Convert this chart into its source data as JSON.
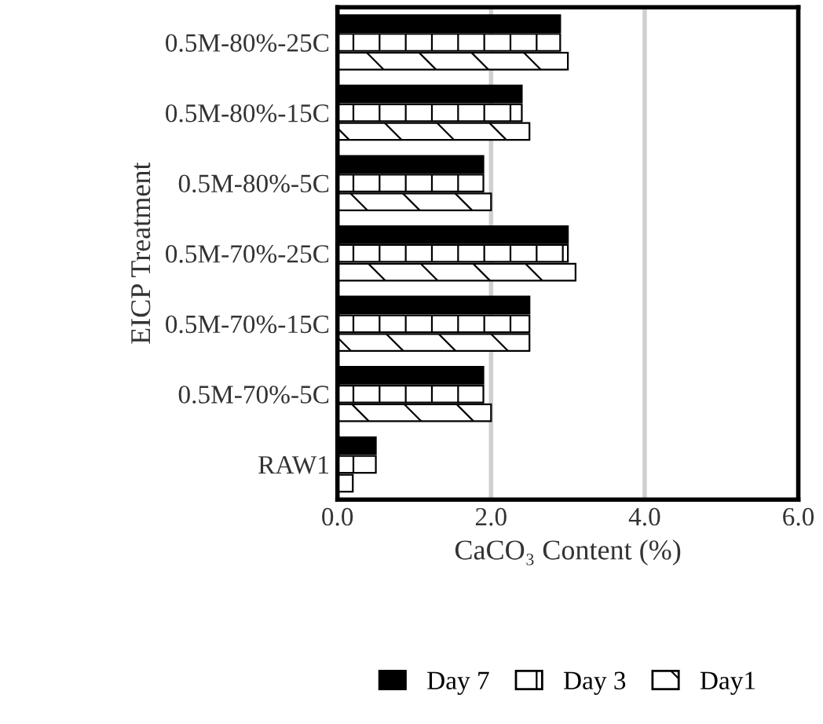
{
  "chart_data": {
    "type": "bar",
    "orientation": "horizontal",
    "xlabel": "CaCO₃ Content (%)",
    "ylabel": "EICP Treatment",
    "categories": [
      "0.5M-80%-25C",
      "0.5M-80%-15C",
      "0.5M-80%-5C",
      "0.5M-70%-25C",
      "0.5M-70%-15C",
      "0.5M-70%-5C",
      "RAW1"
    ],
    "series": [
      {
        "name": "Day 7",
        "color": "#000000",
        "values": [
          2.9,
          2.4,
          1.9,
          3.0,
          2.5,
          1.9,
          0.5
        ]
      },
      {
        "name": "Day 3",
        "color": "#ffffff",
        "values": [
          2.9,
          2.4,
          1.9,
          3.0,
          2.5,
          1.9,
          0.5
        ]
      },
      {
        "name": "Day1",
        "color": "#ffffff",
        "values": [
          3.0,
          2.5,
          2.0,
          3.1,
          2.5,
          2.0,
          0.2
        ]
      }
    ],
    "xlim": [
      0,
      6
    ],
    "xticks": [
      {
        "value": 0,
        "label": "0.0"
      },
      {
        "value": 2,
        "label": "2.0"
      },
      {
        "value": 4,
        "label": "4.0"
      },
      {
        "value": 6,
        "label": "6.0"
      }
    ],
    "grid": "x",
    "legend": "bottom"
  }
}
